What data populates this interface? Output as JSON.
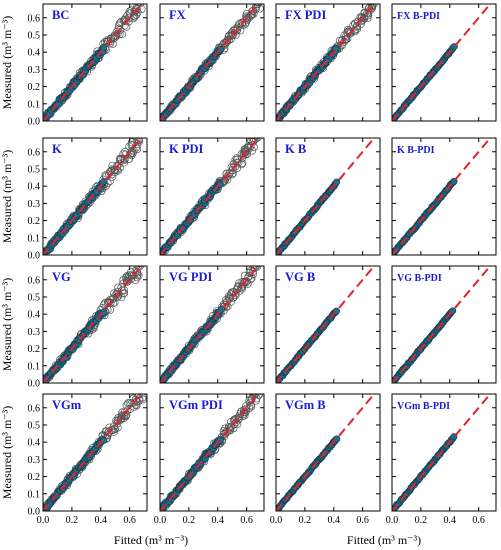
{
  "figure": {
    "xlabel": "Fitted (m³ m⁻³)",
    "ylabel": "Measured (m³ m⁻³)"
  },
  "chart_data": {
    "type": "scatter",
    "xlim": [
      0,
      0.72
    ],
    "ylim": [
      0,
      0.68
    ],
    "xticks": [
      0.0,
      0.2,
      0.4,
      0.6
    ],
    "xtick_labels": [
      "0.0",
      "0.2",
      "0.4",
      "0.6"
    ],
    "yticks": [
      0.0,
      0.1,
      0.2,
      0.3,
      0.4,
      0.5,
      0.6
    ],
    "ytick_labels": [
      "0.0",
      "0.1",
      "0.2",
      "0.3",
      "0.4",
      "0.5",
      "0.6"
    ],
    "reference_line": {
      "style": "dashed",
      "color": "#e8202a",
      "from": [
        0,
        0
      ],
      "to": [
        0.72,
        0.72
      ]
    },
    "series_style": {
      "open": {
        "marker": "open circle",
        "color": "#555555"
      },
      "blue": {
        "marker": "filled circle",
        "color": "#1f6e8c"
      }
    },
    "panels": [
      {
        "title": "BC",
        "open_extent": 0.68,
        "blue_extent": 0.42,
        "spread": 0.025
      },
      {
        "title": "FX",
        "open_extent": 0.68,
        "blue_extent": 0.42,
        "spread": 0.018
      },
      {
        "title": "FX PDI",
        "open_extent": 0.68,
        "blue_extent": 0.42,
        "spread": 0.02
      },
      {
        "title": "FX B-PDI",
        "open_extent": 0.0,
        "blue_extent": 0.43,
        "spread": 0.008
      },
      {
        "title": "K",
        "open_extent": 0.68,
        "blue_extent": 0.42,
        "spread": 0.025
      },
      {
        "title": "K PDI",
        "open_extent": 0.68,
        "blue_extent": 0.42,
        "spread": 0.022
      },
      {
        "title": "K B",
        "open_extent": 0.0,
        "blue_extent": 0.42,
        "spread": 0.008
      },
      {
        "title": "K B-PDI",
        "open_extent": 0.0,
        "blue_extent": 0.43,
        "spread": 0.008
      },
      {
        "title": "VG",
        "open_extent": 0.68,
        "blue_extent": 0.42,
        "spread": 0.025
      },
      {
        "title": "VG PDI",
        "open_extent": 0.68,
        "blue_extent": 0.42,
        "spread": 0.02
      },
      {
        "title": "VG B",
        "open_extent": 0.0,
        "blue_extent": 0.42,
        "spread": 0.008
      },
      {
        "title": "VG B-PDI",
        "open_extent": 0.0,
        "blue_extent": 0.42,
        "spread": 0.008
      },
      {
        "title": "VGm",
        "open_extent": 0.68,
        "blue_extent": 0.42,
        "spread": 0.022
      },
      {
        "title": "VGm PDI",
        "open_extent": 0.68,
        "blue_extent": 0.42,
        "spread": 0.02
      },
      {
        "title": "VGm B",
        "open_extent": 0.0,
        "blue_extent": 0.42,
        "spread": 0.008
      },
      {
        "title": "VGm B-PDI",
        "open_extent": 0.0,
        "blue_extent": 0.43,
        "spread": 0.008
      }
    ]
  }
}
